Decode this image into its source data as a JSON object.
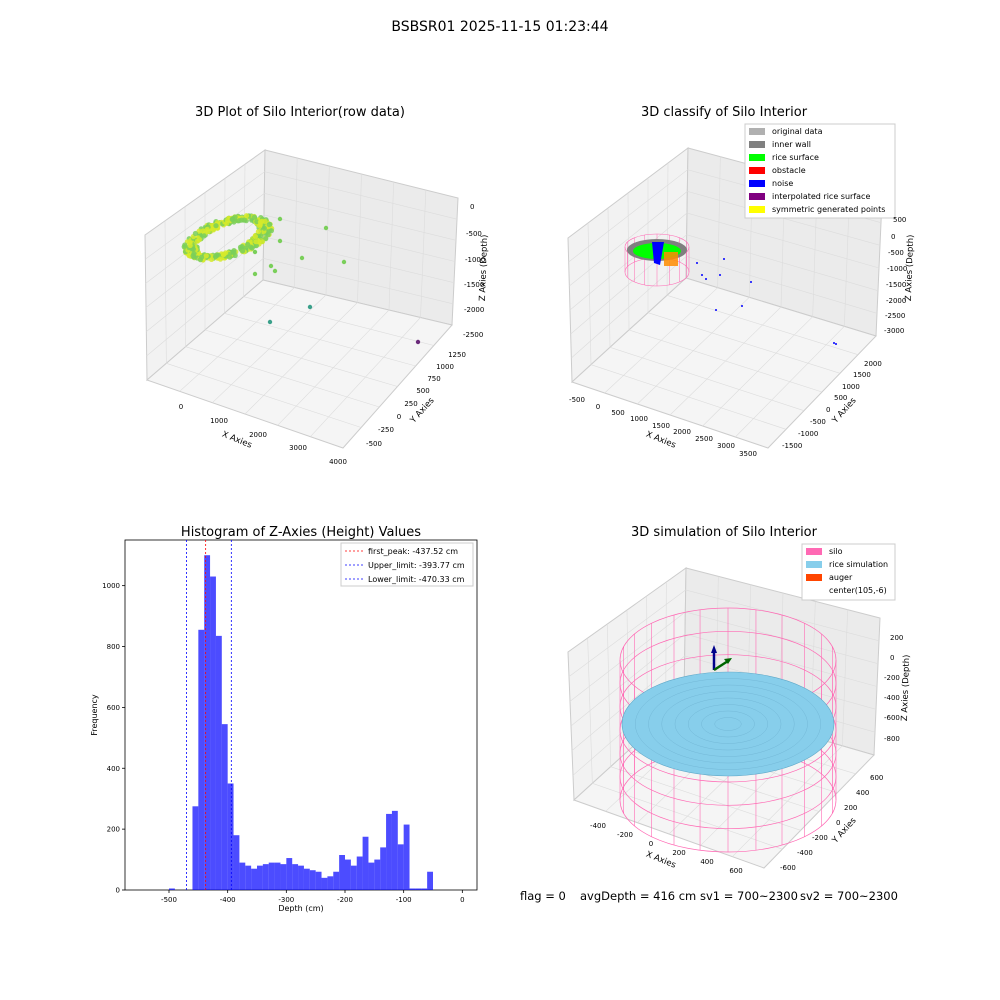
{
  "figure": {
    "title": "BSBSR01 2025-11-15 01:23:44"
  },
  "colors": {
    "raw_green": "#7acf5a",
    "raw_yellow": "#d6ea2a",
    "raw_teal": "#3aa08a",
    "raw_purple": "#6a2a7a",
    "original": "#b0b0b0",
    "inner_wall": "#808080",
    "rice": "#00ff00",
    "obstacle": "#ff0000",
    "noise": "#0000ff",
    "interp": "#800080",
    "symmetric": "#ffff00",
    "silo": "#ff69b4",
    "rice_sim": "#87ceeb",
    "auger": "#ff4500",
    "hist_bar": "#0000ff",
    "peak_line": "#ff0000",
    "limit_line": "#0000ff",
    "pane": "#f2f2f2",
    "grid": "#dcdcdc"
  },
  "chart_data": [
    {
      "type": "scatter",
      "title": "3D Plot of Silo Interior(row data)",
      "projection": "3d",
      "xlabel": "X Axies",
      "ylabel": "Y Axies",
      "zlabel": "Z Axies (Depth)",
      "xticks": [
        "0",
        "1000",
        "2000",
        "3000",
        "4000"
      ],
      "yticks": [
        "-500",
        "-250",
        "0",
        "250",
        "500",
        "750",
        "1000",
        "1250"
      ],
      "zticks": [
        "0",
        "-500",
        "-1000",
        "-1500",
        "-2000",
        "-2500"
      ],
      "xlim": [
        -500,
        4000
      ],
      "ylim": [
        -500,
        1250
      ],
      "zlim": [
        -2700,
        100
      ],
      "notes": "dense ring of points near origin (yellow-green), sparse outliers toward X≈3800"
    },
    {
      "type": "scatter",
      "title": "3D classify of Silo Interior",
      "projection": "3d",
      "xlabel": "X Axies",
      "ylabel": "Y Axies",
      "zlabel": "Z Axies (Depth)",
      "xticks": [
        "-500",
        "0",
        "500",
        "1000",
        "1500",
        "2000",
        "2500",
        "3000",
        "3500"
      ],
      "yticks": [
        "-1500",
        "-1000",
        "-500",
        "0",
        "500",
        "1000",
        "1500",
        "2000"
      ],
      "zticks": [
        "500",
        "0",
        "-500",
        "-1000",
        "-1500",
        "-2000",
        "-2500",
        "-3000"
      ],
      "legend": [
        "original data",
        "inner wall",
        "rice surface",
        "obstacle",
        "noise",
        "interpolated rice surface",
        "symmetric generated points"
      ],
      "legend_loc": "upper right"
    },
    {
      "type": "bar",
      "title": "Histogram of Z-Axies (Height) Values",
      "xlabel": "Depth (cm)",
      "ylabel": "Frequency",
      "xlim": [
        -575,
        25
      ],
      "ylim": [
        0,
        1150
      ],
      "xticks": [
        -500,
        -400,
        -300,
        -200,
        -100,
        0
      ],
      "yticks": [
        0,
        200,
        400,
        600,
        800,
        1000
      ],
      "bin_start": -500,
      "bin_width": 10,
      "values": [
        5,
        0,
        0,
        0,
        275,
        855,
        1100,
        1030,
        835,
        545,
        350,
        180,
        90,
        80,
        70,
        80,
        85,
        90,
        90,
        85,
        105,
        85,
        80,
        70,
        65,
        60,
        40,
        45,
        60,
        115,
        100,
        80,
        110,
        175,
        90,
        100,
        140,
        250,
        260,
        150,
        215,
        5,
        5,
        5,
        60
      ],
      "vlines": [
        {
          "label": "first_peak: -437.52 cm",
          "x": -437.52,
          "style": "red"
        },
        {
          "label": "Upper_limit: -393.77 cm",
          "x": -393.77,
          "style": "blue"
        },
        {
          "label": "Lower_limit: -470.33 cm",
          "x": -470.33,
          "style": "blue"
        }
      ],
      "legend_loc": "upper right"
    },
    {
      "type": "surface",
      "title": "3D simulation of Silo Interior",
      "projection": "3d",
      "xlabel": "X Axies",
      "ylabel": "Y Axies",
      "zlabel": "Z Axies (Depth)",
      "xticks": [
        "-400",
        "-200",
        "0",
        "200",
        "400",
        "600"
      ],
      "yticks": [
        "-600",
        "-400",
        "-200",
        "0",
        "200",
        "400",
        "600"
      ],
      "zticks": [
        "200",
        "0",
        "-200",
        "-400",
        "-600",
        "-800"
      ],
      "legend": [
        "silo",
        "rice simulation",
        "auger",
        "center(105,-6)"
      ],
      "legend_loc": "upper right"
    }
  ],
  "status": {
    "flag": "flag = 0",
    "avg_depth": "avgDepth = 416 cm",
    "sv1": "sv1 = 700~2300",
    "sv2": "sv2 = 700~2300"
  }
}
